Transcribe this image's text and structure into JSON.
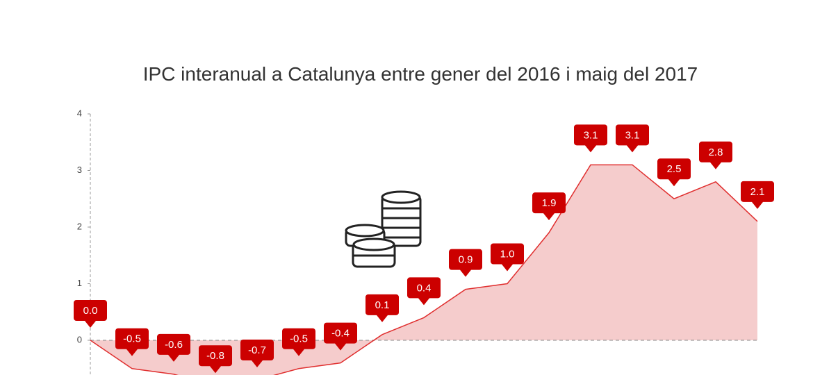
{
  "chart_data": {
    "type": "area",
    "title": "IPC interanual a Catalunya entre gener del 2016 i maig del 2017",
    "categories": [
      null,
      null,
      null,
      null,
      null,
      null,
      null,
      null,
      null,
      null,
      null,
      null,
      null,
      null,
      null,
      null,
      null
    ],
    "values": [
      0.0,
      -0.5,
      -0.6,
      -0.8,
      -0.7,
      -0.5,
      -0.4,
      0.1,
      0.4,
      0.9,
      1.0,
      1.9,
      3.1,
      3.1,
      2.5,
      2.8,
      2.1
    ],
    "value_labels": [
      "0.0",
      "-0.5",
      "-0.6",
      "-0.8",
      "-0.7",
      "-0.5",
      "-0.4",
      "0.1",
      "0.4",
      "0.9",
      "1.0",
      "1.9",
      "3.1",
      "3.1",
      "2.5",
      "2.8",
      "2.1"
    ],
    "color": "#e02f2f",
    "fill_color": "#f5cccc",
    "label_color": "#cc0000",
    "ylim": [
      -1,
      4
    ],
    "yticks": [
      0,
      1,
      2,
      3,
      4
    ]
  }
}
